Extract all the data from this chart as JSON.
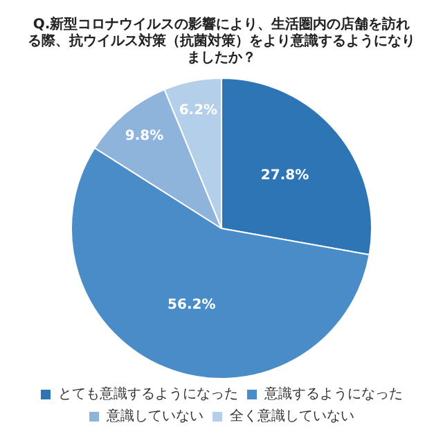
{
  "chart_data": {
    "type": "pie",
    "title": "Q.新型コロナウイルスの影響により、生活圏内の店舗を訪れる際、抗ウイルス対策（抗菌対策）をより意識するようになりましたか？",
    "categories": [
      "とても意識するようになった",
      "意識するようになった",
      "意識していない",
      "全く意識していない"
    ],
    "values": [
      27.8,
      56.2,
      9.8,
      6.2
    ],
    "colors": [
      "#2e75b6",
      "#4a8cc8",
      "#8eb4dc",
      "#b4cfe9"
    ],
    "value_labels": [
      "27.8%",
      "56.2%",
      "9.8%",
      "6.2%"
    ],
    "legend": "bottom"
  }
}
